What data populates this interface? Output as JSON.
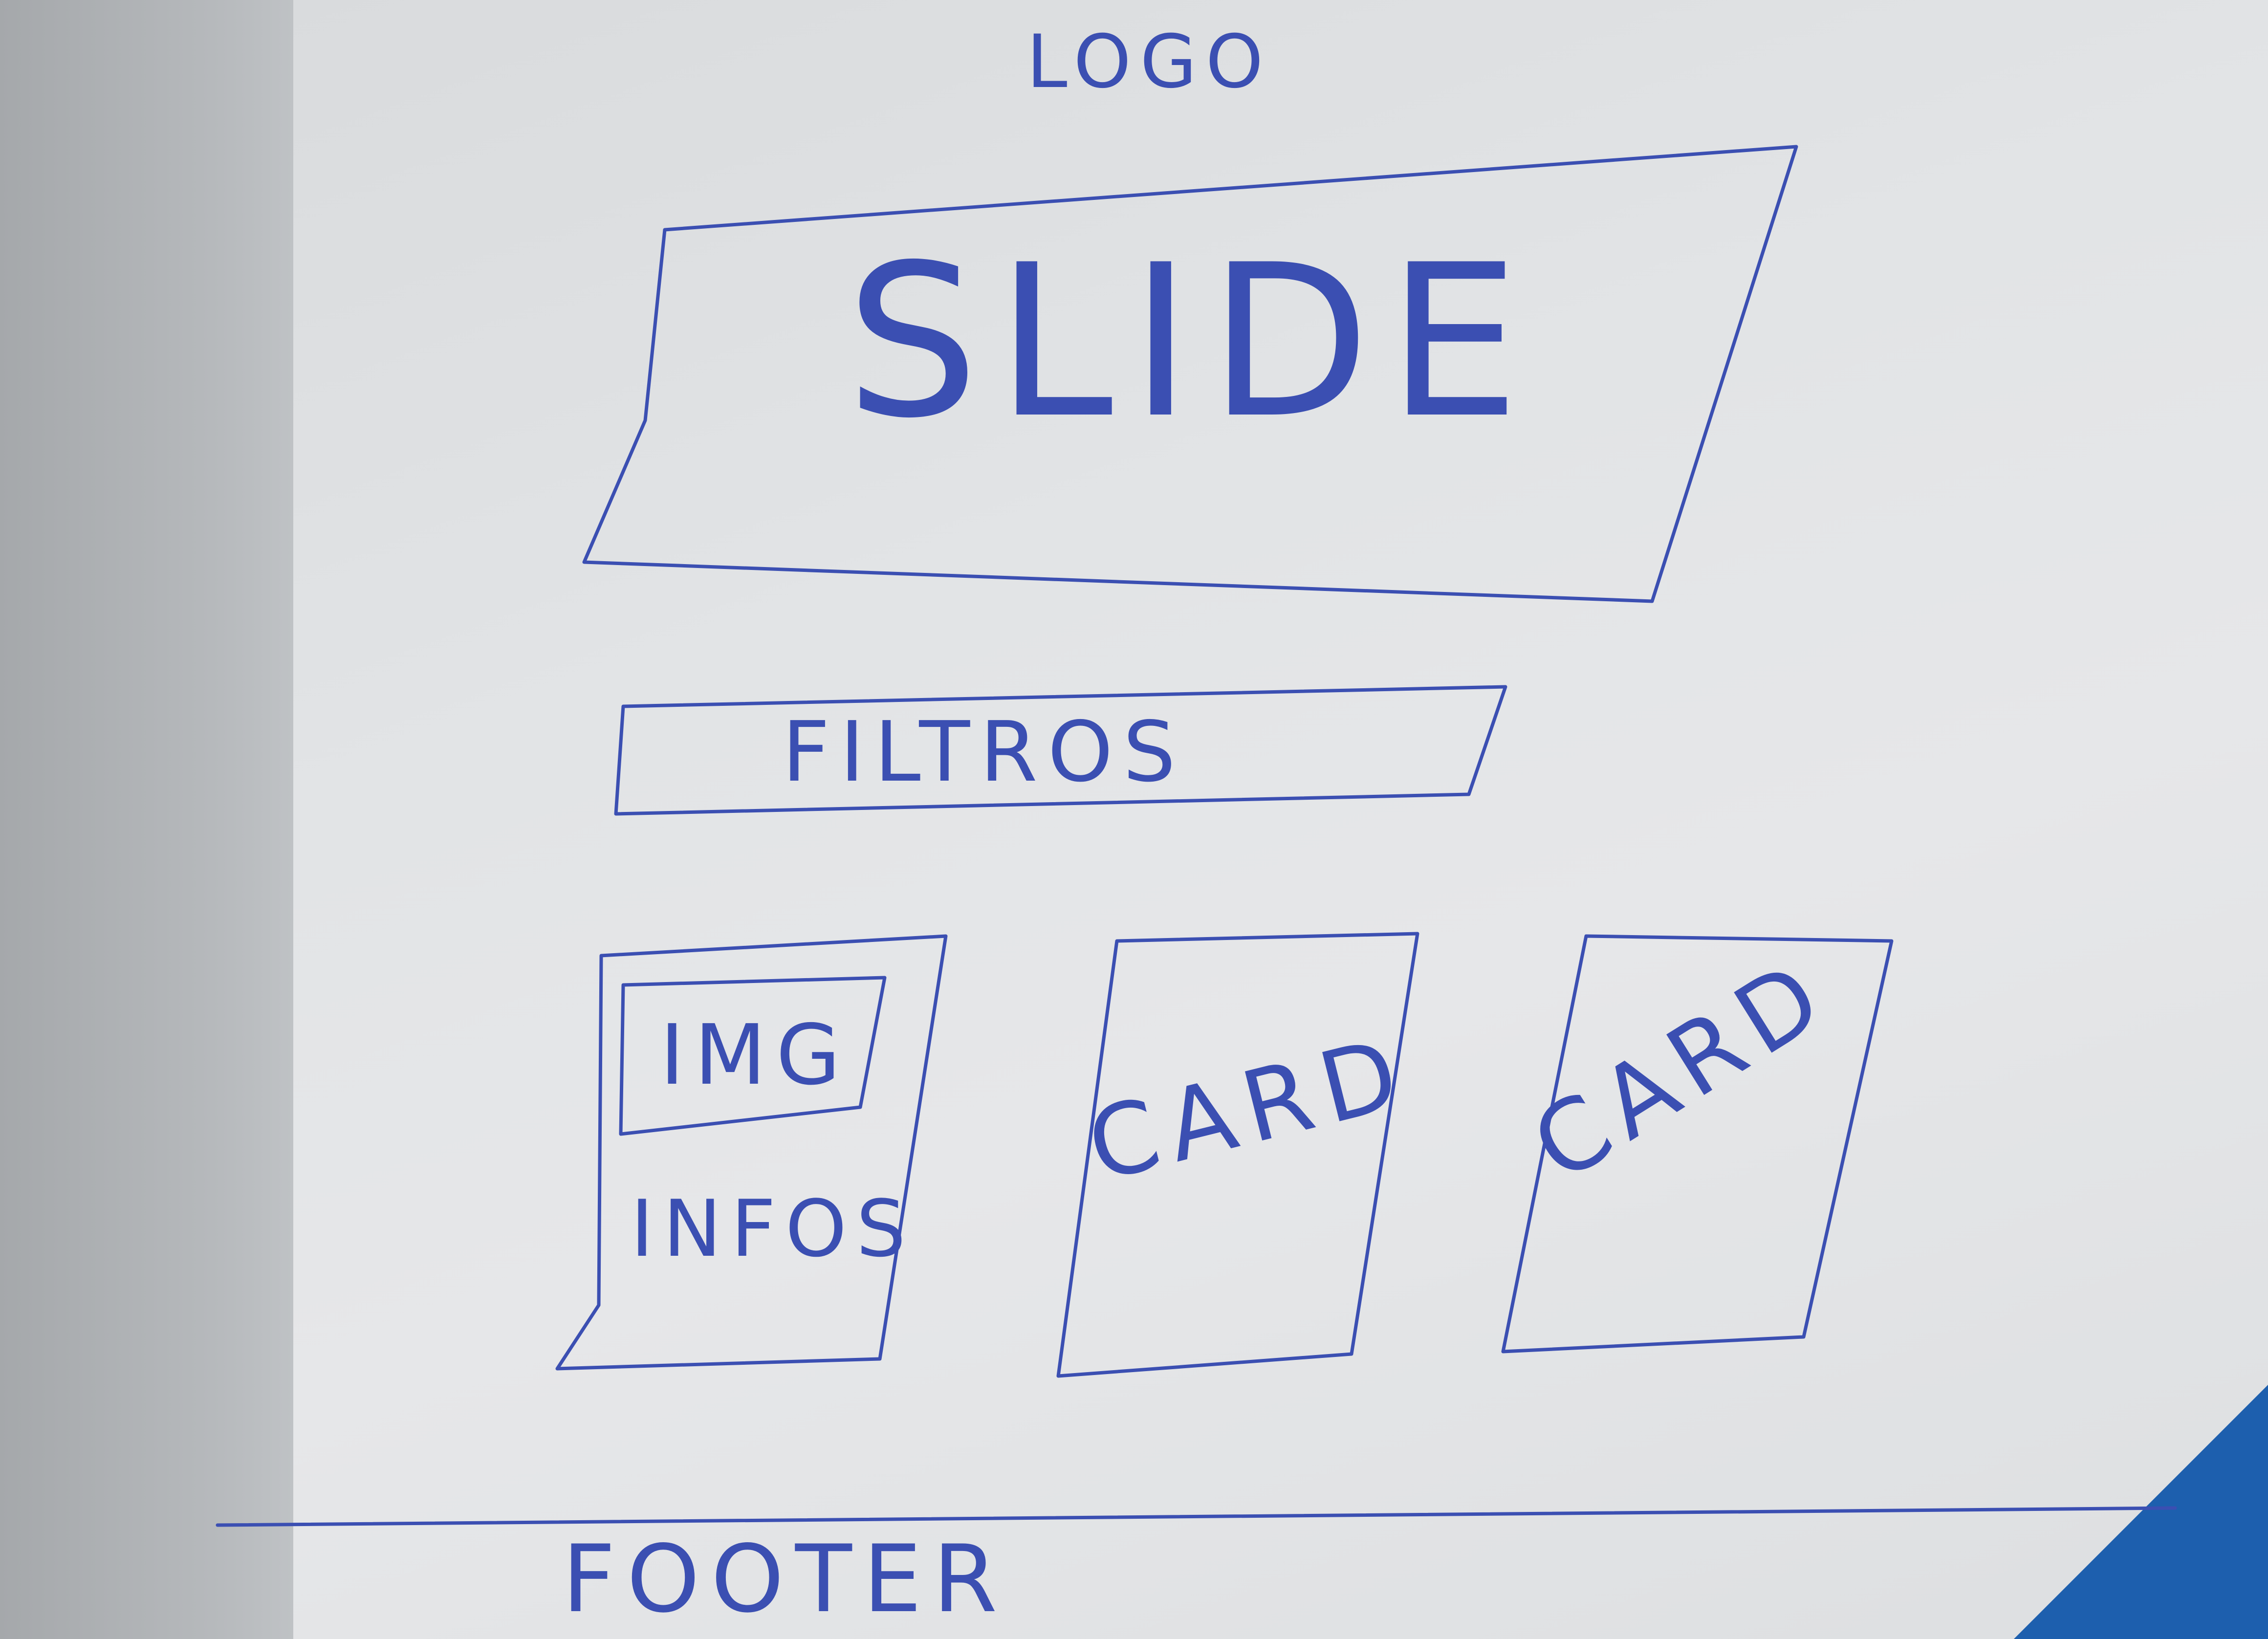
{
  "header": {
    "logo_label": "LOGO"
  },
  "hero": {
    "slide_label": "SLIDE"
  },
  "filters": {
    "label": "FILTROS"
  },
  "cards": [
    {
      "image_label": "IMG",
      "info_label": "INFOS"
    },
    {
      "label": "CARD"
    },
    {
      "label": "CARD"
    }
  ],
  "footer": {
    "label": "FOOTER"
  },
  "colors": {
    "ink": "#3b4fb2",
    "paper": "#e2e4e6",
    "accent_corner": "#1d5fae"
  }
}
